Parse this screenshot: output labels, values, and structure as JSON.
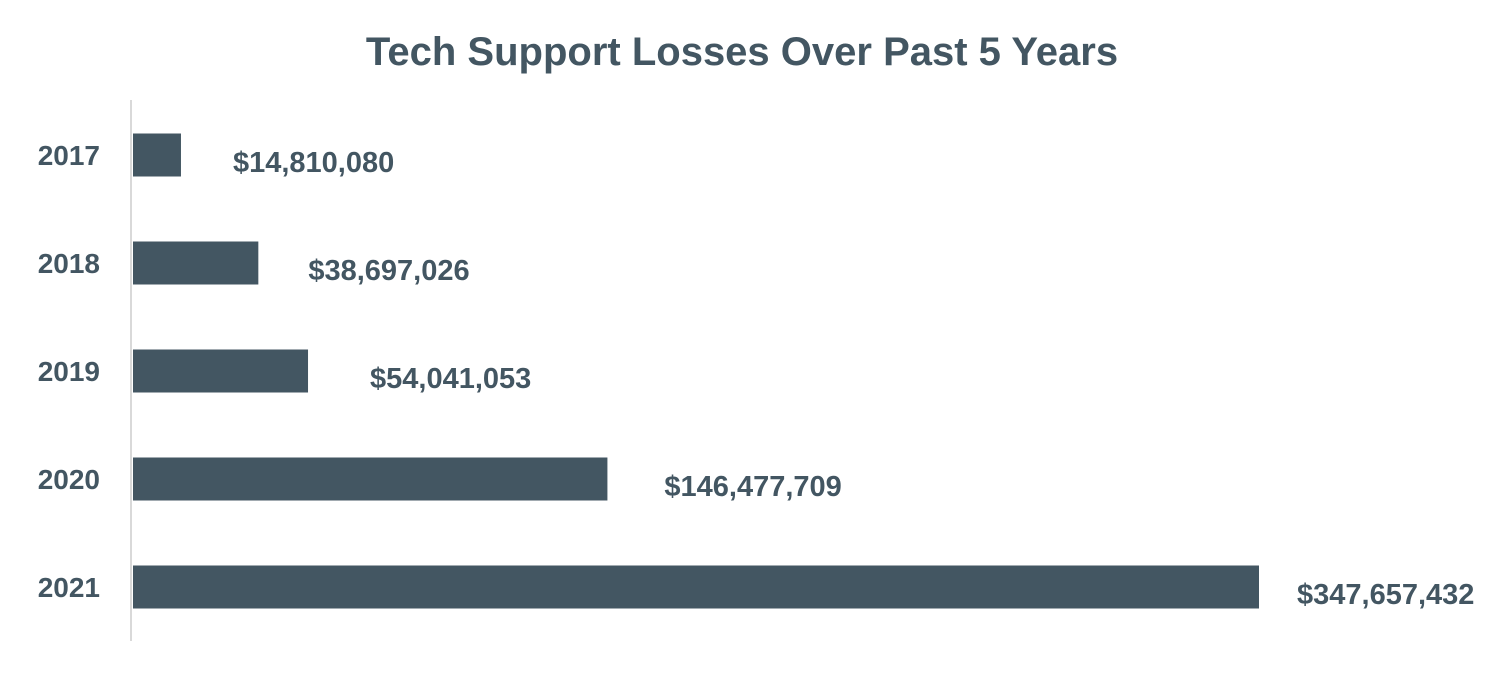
{
  "chart_data": {
    "type": "bar",
    "orientation": "horizontal",
    "title": "Tech Support Losses Over Past 5 Years",
    "xlabel": "",
    "ylabel": "",
    "categories": [
      "2017",
      "2018",
      "2019",
      "2020",
      "2021"
    ],
    "values": [
      14810080,
      38697026,
      54041053,
      146477709,
      347657432
    ],
    "data_labels": [
      "$14,810,080",
      "$38,697,026",
      "$54,041,053",
      "$146,477,709",
      "$347,657,432"
    ],
    "xlim": [
      0,
      347657432
    ],
    "grid": false,
    "legend": "none",
    "colors": {
      "bar": "#435662",
      "text": "#435662",
      "axis": "#d9d9d9"
    }
  }
}
